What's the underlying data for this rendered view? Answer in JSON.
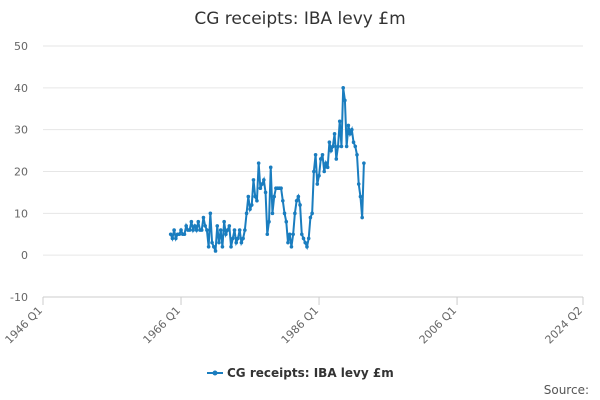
{
  "chart_data": {
    "type": "line",
    "title": "CG receipts: IBA levy £m",
    "source": "Source:",
    "x": [
      "1964 Q3",
      "1964 Q4",
      "1965 Q1",
      "1965 Q2",
      "1965 Q3",
      "1965 Q4",
      "1966 Q1",
      "1966 Q2",
      "1966 Q3",
      "1966 Q4",
      "1967 Q1",
      "1967 Q2",
      "1967 Q3",
      "1967 Q4",
      "1968 Q1",
      "1968 Q2",
      "1968 Q3",
      "1968 Q4",
      "1969 Q1",
      "1969 Q2",
      "1969 Q3",
      "1969 Q4",
      "1970 Q1",
      "1970 Q2",
      "1970 Q3",
      "1970 Q4",
      "1971 Q1",
      "1971 Q2",
      "1971 Q3",
      "1971 Q4",
      "1972 Q1",
      "1972 Q2",
      "1972 Q3",
      "1972 Q4",
      "1973 Q1",
      "1973 Q2",
      "1973 Q3",
      "1973 Q4",
      "1974 Q1",
      "1974 Q2",
      "1974 Q3",
      "1974 Q4",
      "1975 Q1",
      "1975 Q2",
      "1975 Q3",
      "1975 Q4",
      "1976 Q1",
      "1976 Q2",
      "1976 Q3",
      "1976 Q4",
      "1977 Q1",
      "1977 Q2",
      "1977 Q3",
      "1977 Q4",
      "1978 Q1",
      "1978 Q2",
      "1978 Q3",
      "1978 Q4",
      "1979 Q1",
      "1979 Q2",
      "1979 Q3",
      "1979 Q4",
      "1980 Q1",
      "1980 Q2",
      "1980 Q3",
      "1980 Q4",
      "1981 Q1",
      "1981 Q2",
      "1981 Q3",
      "1981 Q4",
      "1982 Q1",
      "1982 Q2",
      "1982 Q3",
      "1982 Q4",
      "1983 Q1",
      "1983 Q2",
      "1983 Q3",
      "1983 Q4",
      "1984 Q1",
      "1984 Q2",
      "1984 Q3",
      "1984 Q4",
      "1985 Q1",
      "1985 Q2",
      "1985 Q3",
      "1985 Q4",
      "1986 Q1",
      "1986 Q2",
      "1986 Q3",
      "1986 Q4",
      "1987 Q1",
      "1987 Q2",
      "1987 Q3",
      "1987 Q4",
      "1988 Q1",
      "1988 Q2",
      "1988 Q3",
      "1988 Q4",
      "1989 Q1",
      "1989 Q2",
      "1989 Q3",
      "1989 Q4",
      "1990 Q1",
      "1990 Q2",
      "1990 Q3",
      "1990 Q4",
      "1991 Q1",
      "1991 Q2",
      "1991 Q3",
      "1991 Q4",
      "1992 Q1",
      "1992 Q2",
      "1992 Q3"
    ],
    "series": [
      {
        "name": "CG receipts: IBA levy £m",
        "color": "#1a7dbf",
        "values": [
          5,
          4,
          6,
          4,
          5,
          5,
          6,
          5,
          5,
          7,
          6,
          6,
          8,
          6,
          7,
          6,
          8,
          6,
          6,
          9,
          7,
          6,
          2,
          10,
          3,
          2,
          1,
          7,
          3,
          6,
          2,
          8,
          5,
          6,
          7,
          2,
          4,
          6,
          3,
          4,
          6,
          3,
          4,
          6,
          10,
          14,
          11,
          12,
          18,
          14,
          13,
          22,
          16,
          17,
          18,
          15,
          5,
          8,
          21,
          10,
          14,
          16,
          16,
          16,
          16,
          13,
          10,
          8,
          3,
          5,
          2,
          5,
          10,
          13,
          14,
          12,
          5,
          4,
          3,
          2,
          4,
          9,
          10,
          20,
          24,
          17,
          19,
          23,
          24,
          20,
          22,
          21,
          27,
          25,
          26,
          29,
          23,
          26,
          32,
          26,
          40,
          37,
          26,
          31,
          29,
          30,
          27,
          26,
          24,
          17,
          14,
          9,
          22
        ]
      }
    ],
    "xlim": [
      "1946 Q1",
      "2024 Q2"
    ],
    "xticks": [
      "1946 Q1",
      "1966 Q1",
      "1986 Q1",
      "2006 Q1",
      "2024 Q2"
    ],
    "ylim": [
      -10,
      50
    ],
    "yticks": [
      -10,
      0,
      10,
      20,
      30,
      40,
      50
    ],
    "grid": true
  }
}
